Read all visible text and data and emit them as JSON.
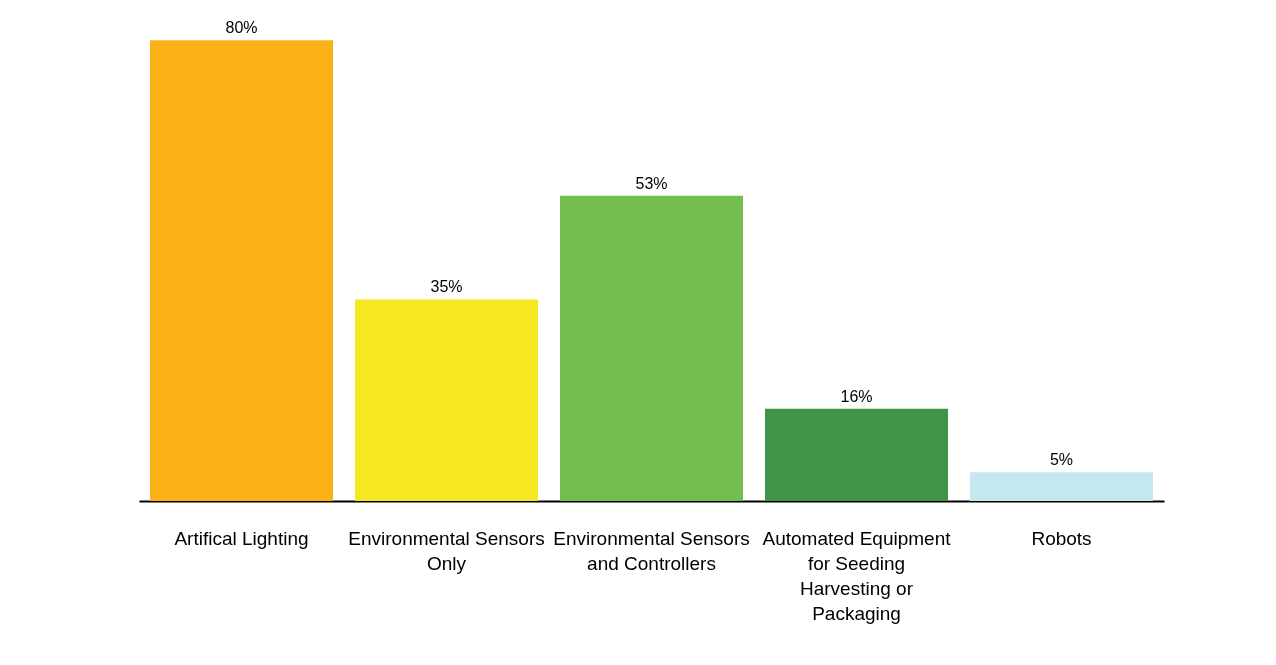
{
  "chart_data": {
    "type": "bar",
    "categories": [
      "Artifical Lighting",
      "Environmental Sensors Only",
      "Environmental Sensors and Controllers",
      "Automated Equipment for Seeding Harvesting or Packaging",
      "Robots"
    ],
    "values": [
      80,
      35,
      53,
      16,
      5
    ],
    "colors": [
      "#fbb116",
      "#f5e823",
      "#72bf50",
      "#3f9447",
      "#c5e8ee"
    ],
    "value_labels": [
      "80%",
      "35%",
      "53%",
      "16%",
      "5%"
    ]
  }
}
